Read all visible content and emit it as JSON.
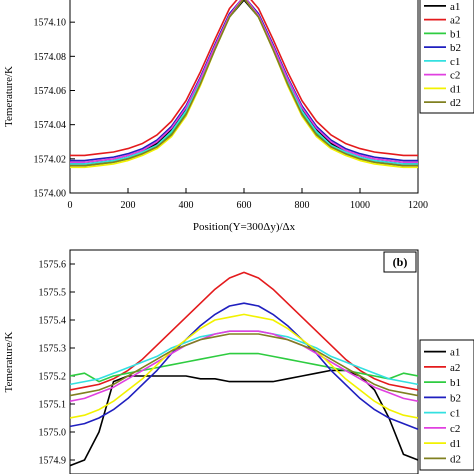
{
  "chart_data": [
    {
      "panel": "a",
      "type": "line",
      "xlabel": "Position(Y=300Δy)/Δx",
      "ylabel": "Temerature/K",
      "xlim": [
        0,
        1200
      ],
      "ylim": [
        1574.0,
        1574.12
      ],
      "xticks": [
        0,
        200,
        400,
        600,
        800,
        1000,
        1200
      ],
      "yticks": [
        1574.0,
        1574.02,
        1574.04,
        1574.06,
        1574.08,
        1574.1
      ],
      "ytick_labels": [
        "1574.00",
        "1574.02",
        "1574.04",
        "1574.06",
        "1574.08",
        "1574.10"
      ],
      "grid": false,
      "legend_position": "right",
      "x": [
        0,
        50,
        100,
        150,
        200,
        250,
        300,
        350,
        400,
        450,
        500,
        550,
        600,
        650,
        700,
        750,
        800,
        850,
        900,
        950,
        1000,
        1050,
        1100,
        1150,
        1200
      ],
      "series": [
        {
          "name": "a1",
          "color": "#000000",
          "values": [
            1574.017,
            1574.017,
            1574.018,
            1574.019,
            1574.021,
            1574.024,
            1574.029,
            1574.037,
            1574.049,
            1574.066,
            1574.085,
            1574.103,
            1574.113,
            1574.103,
            1574.085,
            1574.066,
            1574.049,
            1574.037,
            1574.029,
            1574.024,
            1574.021,
            1574.019,
            1574.018,
            1574.017,
            1574.017
          ]
        },
        {
          "name": "a2",
          "color": "#e41a1c",
          "values": [
            1574.022,
            1574.022,
            1574.023,
            1574.024,
            1574.026,
            1574.029,
            1574.034,
            1574.042,
            1574.054,
            1574.071,
            1574.09,
            1574.108,
            1574.118,
            1574.108,
            1574.09,
            1574.071,
            1574.054,
            1574.042,
            1574.034,
            1574.029,
            1574.026,
            1574.024,
            1574.023,
            1574.022,
            1574.022
          ]
        },
        {
          "name": "b1",
          "color": "#2ecc40",
          "values": [
            1574.016,
            1574.016,
            1574.017,
            1574.018,
            1574.02,
            1574.023,
            1574.027,
            1574.035,
            1574.047,
            1574.065,
            1574.085,
            1574.104,
            1574.115,
            1574.104,
            1574.085,
            1574.065,
            1574.047,
            1574.035,
            1574.027,
            1574.023,
            1574.02,
            1574.018,
            1574.017,
            1574.016,
            1574.016
          ]
        },
        {
          "name": "b2",
          "color": "#1f1fbf",
          "values": [
            1574.019,
            1574.019,
            1574.02,
            1574.021,
            1574.023,
            1574.026,
            1574.031,
            1574.039,
            1574.051,
            1574.068,
            1574.087,
            1574.105,
            1574.115,
            1574.105,
            1574.087,
            1574.068,
            1574.051,
            1574.039,
            1574.031,
            1574.026,
            1574.023,
            1574.021,
            1574.02,
            1574.019,
            1574.019
          ]
        },
        {
          "name": "c1",
          "color": "#33e0e0",
          "values": [
            1574.017,
            1574.017,
            1574.018,
            1574.019,
            1574.021,
            1574.024,
            1574.028,
            1574.036,
            1574.048,
            1574.065,
            1574.085,
            1574.103,
            1574.114,
            1574.103,
            1574.085,
            1574.065,
            1574.048,
            1574.036,
            1574.028,
            1574.024,
            1574.021,
            1574.019,
            1574.018,
            1574.017,
            1574.017
          ]
        },
        {
          "name": "c2",
          "color": "#e040e0",
          "values": [
            1574.018,
            1574.018,
            1574.019,
            1574.02,
            1574.022,
            1574.025,
            1574.03,
            1574.038,
            1574.05,
            1574.067,
            1574.086,
            1574.104,
            1574.115,
            1574.104,
            1574.086,
            1574.067,
            1574.05,
            1574.038,
            1574.03,
            1574.025,
            1574.022,
            1574.02,
            1574.019,
            1574.018,
            1574.018
          ]
        },
        {
          "name": "d1",
          "color": "#f2f200",
          "values": [
            1574.015,
            1574.015,
            1574.016,
            1574.017,
            1574.019,
            1574.022,
            1574.026,
            1574.033,
            1574.045,
            1574.063,
            1574.084,
            1574.103,
            1574.114,
            1574.103,
            1574.084,
            1574.063,
            1574.045,
            1574.033,
            1574.026,
            1574.022,
            1574.019,
            1574.017,
            1574.016,
            1574.015,
            1574.015
          ]
        },
        {
          "name": "d2",
          "color": "#808020",
          "values": [
            1574.016,
            1574.016,
            1574.017,
            1574.018,
            1574.02,
            1574.023,
            1574.027,
            1574.034,
            1574.046,
            1574.064,
            1574.084,
            1574.103,
            1574.114,
            1574.103,
            1574.084,
            1574.064,
            1574.046,
            1574.034,
            1574.027,
            1574.023,
            1574.02,
            1574.018,
            1574.017,
            1574.016,
            1574.016
          ]
        }
      ]
    },
    {
      "panel": "b",
      "badge": "(b)",
      "type": "line",
      "xlabel": "",
      "ylabel": "Temerature/K",
      "ylim": [
        1574.85,
        1575.65
      ],
      "yticks": [
        1574.9,
        1575.0,
        1575.1,
        1575.2,
        1575.3,
        1575.4,
        1575.5,
        1575.6
      ],
      "ytick_labels": [
        "1574.9",
        "1575.0",
        "1575.1",
        "1575.2",
        "1575.3",
        "1575.4",
        "1575.5",
        "1575.6"
      ],
      "xlim": [
        0,
        1200
      ],
      "grid": false,
      "legend_position": "right",
      "x": [
        0,
        50,
        100,
        150,
        200,
        250,
        300,
        350,
        400,
        450,
        500,
        550,
        600,
        650,
        700,
        750,
        800,
        850,
        900,
        950,
        1000,
        1050,
        1100,
        1150,
        1200
      ],
      "series": [
        {
          "name": "a1",
          "color": "#000000",
          "values": [
            1574.88,
            1574.9,
            1575.0,
            1575.18,
            1575.2,
            1575.2,
            1575.2,
            1575.2,
            1575.2,
            1575.19,
            1575.19,
            1575.18,
            1575.18,
            1575.18,
            1575.18,
            1575.19,
            1575.2,
            1575.21,
            1575.22,
            1575.22,
            1575.2,
            1575.15,
            1575.05,
            1574.92,
            1574.9
          ]
        },
        {
          "name": "a2",
          "color": "#e41a1c",
          "values": [
            1575.15,
            1575.16,
            1575.17,
            1575.19,
            1575.22,
            1575.26,
            1575.31,
            1575.36,
            1575.41,
            1575.46,
            1575.51,
            1575.55,
            1575.57,
            1575.55,
            1575.51,
            1575.46,
            1575.41,
            1575.36,
            1575.31,
            1575.26,
            1575.22,
            1575.19,
            1575.17,
            1575.16,
            1575.15
          ]
        },
        {
          "name": "b1",
          "color": "#2ecc40",
          "values": [
            1575.2,
            1575.21,
            1575.18,
            1575.2,
            1575.21,
            1575.22,
            1575.23,
            1575.24,
            1575.25,
            1575.26,
            1575.27,
            1575.28,
            1575.28,
            1575.28,
            1575.27,
            1575.26,
            1575.25,
            1575.24,
            1575.23,
            1575.22,
            1575.21,
            1575.2,
            1575.19,
            1575.21,
            1575.2
          ]
        },
        {
          "name": "b2",
          "color": "#1f1fbf",
          "values": [
            1575.02,
            1575.03,
            1575.05,
            1575.08,
            1575.12,
            1575.17,
            1575.22,
            1575.28,
            1575.33,
            1575.38,
            1575.42,
            1575.45,
            1575.46,
            1575.45,
            1575.42,
            1575.38,
            1575.33,
            1575.28,
            1575.22,
            1575.17,
            1575.12,
            1575.08,
            1575.05,
            1575.03,
            1575.01
          ]
        },
        {
          "name": "c1",
          "color": "#33e0e0",
          "values": [
            1575.17,
            1575.18,
            1575.19,
            1575.21,
            1575.23,
            1575.25,
            1575.27,
            1575.3,
            1575.32,
            1575.34,
            1575.35,
            1575.36,
            1575.36,
            1575.36,
            1575.35,
            1575.34,
            1575.32,
            1575.3,
            1575.27,
            1575.25,
            1575.23,
            1575.21,
            1575.19,
            1575.18,
            1575.17
          ]
        },
        {
          "name": "c2",
          "color": "#e040e0",
          "values": [
            1575.11,
            1575.12,
            1575.14,
            1575.16,
            1575.19,
            1575.22,
            1575.25,
            1575.28,
            1575.31,
            1575.33,
            1575.35,
            1575.36,
            1575.36,
            1575.36,
            1575.35,
            1575.33,
            1575.31,
            1575.28,
            1575.25,
            1575.22,
            1575.19,
            1575.16,
            1575.14,
            1575.12,
            1575.11
          ]
        },
        {
          "name": "d1",
          "color": "#f2f200",
          "values": [
            1575.05,
            1575.06,
            1575.08,
            1575.11,
            1575.15,
            1575.19,
            1575.24,
            1575.29,
            1575.33,
            1575.37,
            1575.4,
            1575.41,
            1575.42,
            1575.41,
            1575.4,
            1575.37,
            1575.33,
            1575.29,
            1575.24,
            1575.19,
            1575.15,
            1575.11,
            1575.08,
            1575.06,
            1575.05
          ]
        },
        {
          "name": "d2",
          "color": "#808020",
          "values": [
            1575.13,
            1575.14,
            1575.15,
            1575.17,
            1575.2,
            1575.23,
            1575.26,
            1575.29,
            1575.31,
            1575.33,
            1575.34,
            1575.35,
            1575.35,
            1575.35,
            1575.34,
            1575.33,
            1575.31,
            1575.29,
            1575.26,
            1575.23,
            1575.2,
            1575.17,
            1575.15,
            1575.14,
            1575.13
          ]
        }
      ]
    }
  ]
}
